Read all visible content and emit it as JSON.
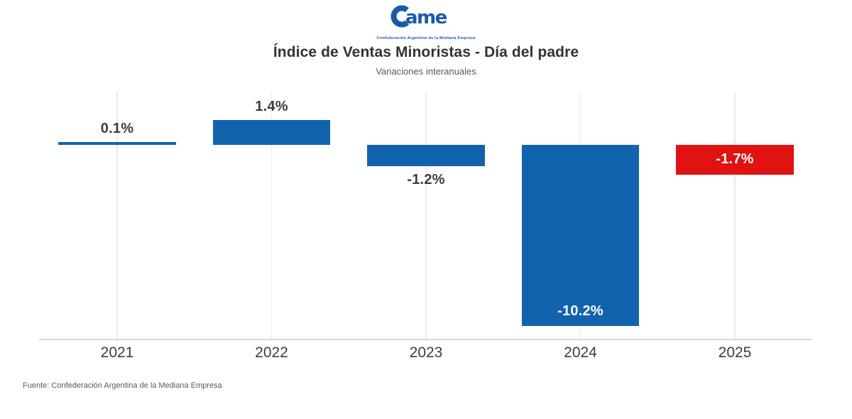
{
  "logo": {
    "wordmark": "Came",
    "tagline": "Confederación Argentina de la Mediana Empresa",
    "color": "#1a5aaa"
  },
  "source": "Fuente: Confederación Argentina de la Mediana Empresa",
  "colors": {
    "bar_blue": "#1263ae",
    "bar_red": "#e01212",
    "label_dark": "#3d3d3d",
    "label_light": "#ffffff",
    "gridline": "#eaeaea",
    "axis_line": "#d9d9d9"
  },
  "chart_data": {
    "type": "bar",
    "title": "Índice de Ventas Minoristas - Día del padre",
    "subtitle": "Variaciones interanuales",
    "categories": [
      "2021",
      "2022",
      "2023",
      "2024",
      "2025"
    ],
    "values": [
      0.1,
      1.4,
      -1.2,
      -10.2,
      -1.7
    ],
    "value_labels": [
      "0.1%",
      "1.4%",
      "-1.2%",
      "-10.2%",
      "-1.7%"
    ],
    "bar_colors": [
      "#1263ae",
      "#1263ae",
      "#1263ae",
      "#1263ae",
      "#e01212"
    ],
    "label_placements": [
      "above",
      "above",
      "below",
      "inside-bottom",
      "inside"
    ],
    "label_colors": [
      "#3d3d3d",
      "#3d3d3d",
      "#3d3d3d",
      "#ffffff",
      "#ffffff"
    ],
    "xlabel": "",
    "ylabel": "",
    "unit": "%",
    "ylim": [
      -11,
      2.9
    ],
    "grid": "vertical-only",
    "legend": "none"
  }
}
